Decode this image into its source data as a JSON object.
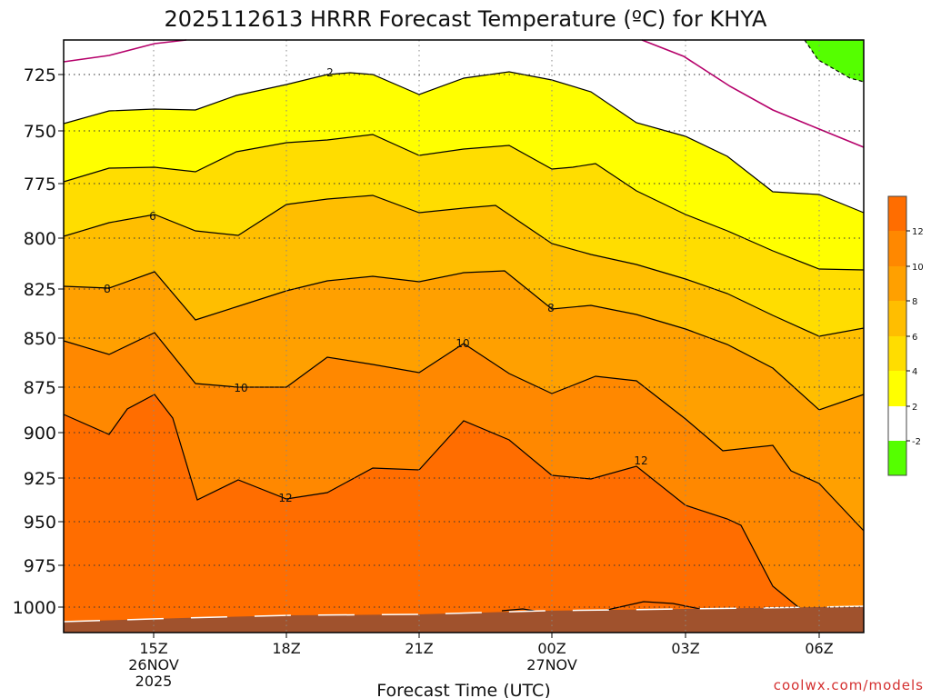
{
  "chart_data": {
    "type": "contour",
    "title": "2025112613 HRRR Forecast Temperature (ºC) for KHYA",
    "xlabel": "Forecast Time (UTC)",
    "ylabel": "",
    "y_axis": {
      "unit": "hPa",
      "inverted": true,
      "ticks": [
        "725",
        "750",
        "775",
        "800",
        "825",
        "850",
        "875",
        "900",
        "925",
        "950",
        "975",
        "1000"
      ]
    },
    "x_axis": {
      "ticks": [
        {
          "label": "15Z",
          "sub": [
            "26NOV",
            "2025"
          ]
        },
        {
          "label": "18Z",
          "sub": []
        },
        {
          "label": "21Z",
          "sub": []
        },
        {
          "label": "00Z",
          "sub": [
            "27NOV"
          ]
        },
        {
          "label": "03Z",
          "sub": []
        },
        {
          "label": "06Z",
          "sub": []
        }
      ]
    },
    "grid": true,
    "legend": "right colorbar",
    "colorbar": {
      "ticks": [
        "-2",
        "2",
        "4",
        "6",
        "8",
        "10",
        "12"
      ],
      "bands": [
        {
          "range": "<-2",
          "color": "#55ff00"
        },
        {
          "range": "-2 to 2",
          "color": "#ffffff"
        },
        {
          "range": "2 to 4",
          "color": "#ffff00"
        },
        {
          "range": "4 to 6",
          "color": "#ffdd00"
        },
        {
          "range": "6 to 8",
          "color": "#ffbe00"
        },
        {
          "range": "8 to 10",
          "color": "#ffa000"
        },
        {
          "range": "10 to 12",
          "color": "#ff8800"
        },
        {
          "range": "12 to 14",
          "color": "#ff6d00"
        }
      ]
    },
    "contour_labels": [
      "2",
      "6",
      "8",
      "10",
      "10",
      "8",
      "12",
      "12"
    ],
    "ground_color": "#a0522d",
    "zero_line_color": "#b5006a"
  },
  "watermark": "coolwx.com/models"
}
